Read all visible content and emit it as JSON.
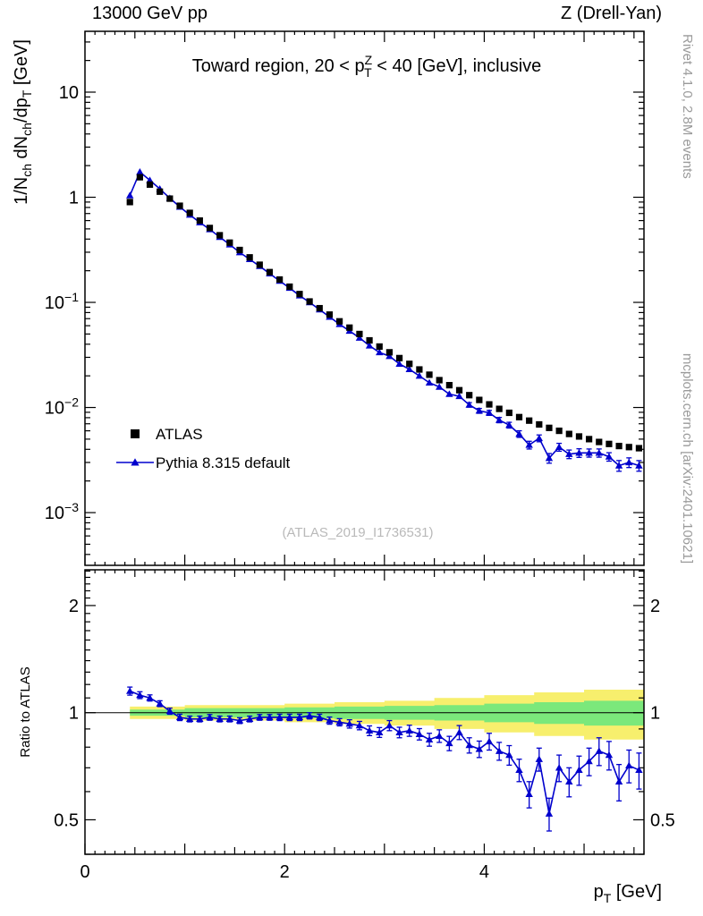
{
  "page": {
    "header_left": "13000 GeV pp",
    "header_right": "Z (Drell-Yan)",
    "side_text_top": "Rivet 4.1.0,  2.8M events",
    "side_text_bottom": "mcplots.cern.ch [arXiv:2401.10621]",
    "watermark": "(ATLAS_2019_I1736531)"
  },
  "chart_data": {
    "type": "line",
    "title": "Toward region, 20 < pT^Z < 40 [GeV], inclusive",
    "xlabel": "p_T [GeV]",
    "ylabel": "1/N_ch dN_ch/dp_T [GeV]",
    "ratio_y_title": "Ratio to ATLAS",
    "title_parts": {
      "pre": "Toward region, 20 < p",
      "sup": "Z",
      "sub": "T",
      "post": " < 40 [GeV], inclusive"
    },
    "x_label_parts": {
      "p": "p",
      "sub": "T",
      "rest": " [GeV]"
    },
    "y_label_parts": {
      "p1": "1/N",
      "s1": "ch",
      "p2": " dN",
      "s2": "ch",
      "p3": "/dp",
      "s3": "T",
      "p4": " [GeV]"
    },
    "legend": [
      "ATLAS",
      "Pythia 8.315 default"
    ],
    "x": [
      0.45,
      0.55,
      0.65,
      0.75,
      0.85,
      0.95,
      1.05,
      1.15,
      1.25,
      1.35,
      1.45,
      1.55,
      1.65,
      1.75,
      1.85,
      1.95,
      2.05,
      2.15,
      2.25,
      2.35,
      2.45,
      2.55,
      2.65,
      2.75,
      2.85,
      2.95,
      3.05,
      3.15,
      3.25,
      3.35,
      3.45,
      3.55,
      3.65,
      3.75,
      3.85,
      3.95,
      4.05,
      4.15,
      4.25,
      4.35,
      4.45,
      4.55,
      4.65,
      4.75,
      4.85,
      4.95,
      5.05,
      5.15,
      5.25,
      5.35,
      5.45,
      5.55
    ],
    "series": {
      "atlas": [
        0.9,
        1.55,
        1.32,
        1.13,
        0.97,
        0.83,
        0.71,
        0.6,
        0.51,
        0.435,
        0.37,
        0.315,
        0.268,
        0.228,
        0.194,
        0.165,
        0.141,
        0.12,
        0.102,
        0.088,
        0.0765,
        0.066,
        0.0575,
        0.05,
        0.0435,
        0.038,
        0.0335,
        0.0295,
        0.026,
        0.023,
        0.0205,
        0.0182,
        0.0163,
        0.0146,
        0.0131,
        0.0118,
        0.0107,
        0.0097,
        0.0089,
        0.0081,
        0.0075,
        0.0069,
        0.0064,
        0.006,
        0.0056,
        0.0053,
        0.005,
        0.0047,
        0.0045,
        0.0043,
        0.0042,
        0.0041
      ],
      "pythia": [
        1.04,
        1.74,
        1.45,
        1.2,
        0.98,
        0.81,
        0.68,
        0.576,
        0.495,
        0.418,
        0.355,
        0.299,
        0.257,
        0.221,
        0.188,
        0.16,
        0.137,
        0.116,
        0.1,
        0.0854,
        0.0727,
        0.062,
        0.0535,
        0.046,
        0.0387,
        0.0334,
        0.0308,
        0.026,
        0.0231,
        0.02,
        0.0172,
        0.0157,
        0.0134,
        0.0128,
        0.0106,
        0.0093,
        0.0089,
        0.0076,
        0.0068,
        0.0056,
        0.0044,
        0.0051,
        0.0033,
        0.0042,
        0.0036,
        0.0037,
        0.0037,
        0.0037,
        0.0034,
        0.0028,
        0.003,
        0.0028
      ],
      "ratio": [
        1.15,
        1.12,
        1.1,
        1.06,
        1.01,
        0.97,
        0.96,
        0.96,
        0.97,
        0.96,
        0.96,
        0.95,
        0.96,
        0.97,
        0.97,
        0.97,
        0.97,
        0.97,
        0.98,
        0.97,
        0.95,
        0.94,
        0.93,
        0.92,
        0.89,
        0.88,
        0.92,
        0.88,
        0.89,
        0.87,
        0.84,
        0.86,
        0.82,
        0.88,
        0.81,
        0.79,
        0.83,
        0.78,
        0.76,
        0.69,
        0.59,
        0.74,
        0.52,
        0.7,
        0.64,
        0.69,
        0.73,
        0.78,
        0.76,
        0.64,
        0.71,
        0.69
      ],
      "ratio_err": [
        0.03,
        0.025,
        0.022,
        0.02,
        0.02,
        0.02,
        0.018,
        0.018,
        0.018,
        0.018,
        0.018,
        0.018,
        0.018,
        0.018,
        0.018,
        0.02,
        0.02,
        0.02,
        0.02,
        0.02,
        0.022,
        0.022,
        0.025,
        0.025,
        0.028,
        0.028,
        0.03,
        0.03,
        0.032,
        0.032,
        0.035,
        0.035,
        0.038,
        0.04,
        0.04,
        0.042,
        0.045,
        0.045,
        0.048,
        0.05,
        0.05,
        0.055,
        0.055,
        0.06,
        0.06,
        0.065,
        0.065,
        0.07,
        0.07,
        0.075,
        0.075,
        0.08
      ]
    },
    "ratio_band": {
      "x_edges": [
        0.45,
        1.0,
        2.0,
        2.5,
        3.0,
        3.5,
        4.0,
        4.5,
        5.0,
        5.6
      ],
      "yellow_half": [
        0.04,
        0.05,
        0.06,
        0.07,
        0.08,
        0.1,
        0.12,
        0.14,
        0.16
      ],
      "green_half": [
        0.02,
        0.03,
        0.035,
        0.04,
        0.045,
        0.05,
        0.06,
        0.07,
        0.08
      ]
    },
    "axes": {
      "x_min": 0,
      "x_max": 5.6,
      "main_y_min": 0.000315,
      "main_y_max": 37.9,
      "ratio_y_min": 0.4,
      "ratio_y_max": 2.52,
      "y_scale": "log",
      "ratio_scale": "log",
      "grid": false,
      "x_tick_labels": [
        0,
        2,
        4
      ],
      "main_y_label_exponents": [
        1,
        0,
        -1,
        -2,
        -3
      ],
      "ratio_y_tick_labels": [
        2,
        1,
        0.5
      ]
    },
    "colors": {
      "atlas": "#000000",
      "pythia": "#0000cd",
      "band_outer": "#f7ef6d",
      "band_inner": "#7be87b",
      "side_text": "#9a9a9a",
      "watermark": "#b9b9b9"
    }
  }
}
